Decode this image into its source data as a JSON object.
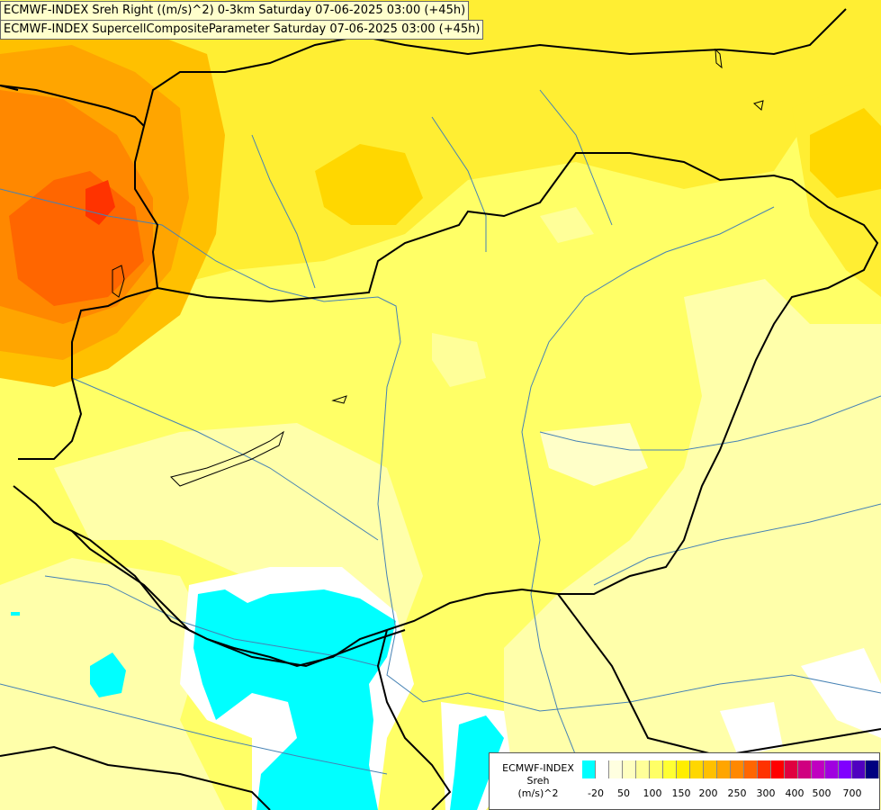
{
  "titles": {
    "line1": "ECMWF-INDEX Sreh Right ((m/s)^2) 0-3km Saturday 07-06-2025 03:00 (+45h)",
    "line2": "ECMWF-INDEX SupercellCompositeParameter Saturday 07-06-2025 03:00 (+45h)"
  },
  "legend": {
    "title_line1": "ECMWF-INDEX",
    "title_line2": "Sreh",
    "title_line3": "(m/s)^2",
    "colors": [
      "#00ffff",
      "#ffffff",
      "#ffffe0",
      "#ffffc0",
      "#ffff99",
      "#ffff66",
      "#ffff33",
      "#ffee00",
      "#ffd700",
      "#ffc000",
      "#ffa500",
      "#ff8800",
      "#ff6600",
      "#ff3300",
      "#ff0000",
      "#e00040",
      "#d00080",
      "#c000c0",
      "#a000e0",
      "#8000ff",
      "#5000c0",
      "#000080"
    ],
    "ticks": [
      "-20",
      "50",
      "100",
      "150",
      "200",
      "250",
      "300",
      "400",
      "500",
      "700"
    ]
  },
  "colors": {
    "border": "#000000",
    "river": "#4682b4",
    "background": "#ffff66"
  }
}
